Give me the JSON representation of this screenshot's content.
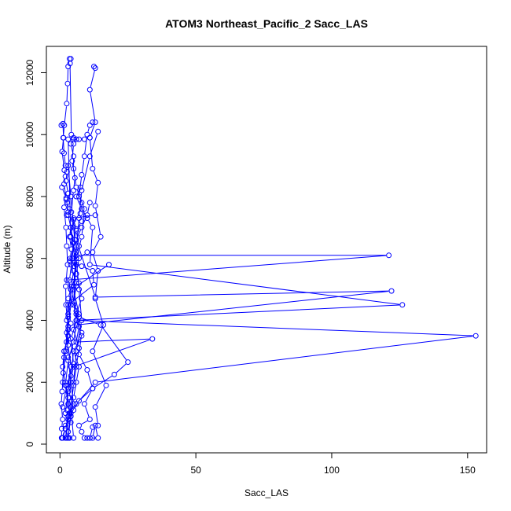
{
  "chart_data": {
    "type": "line",
    "title": "ATOM3 Northeast_Pacific_2 Sacc_LAS",
    "xlabel": "Sacc_LAS",
    "ylabel": "Altitude (m)",
    "xlim": [
      -5,
      157
    ],
    "ylim": [
      -280,
      12850
    ],
    "x_ticks": [
      0,
      50,
      100,
      150
    ],
    "y_ticks": [
      0,
      2000,
      4000,
      6000,
      8000,
      10000,
      12000
    ],
    "grid": false,
    "legend": "none",
    "color": "#0000ff",
    "marker": "open-circle",
    "series": [
      {
        "x": [
          12.5,
          13,
          11,
          13,
          11,
          12,
          14,
          13,
          15,
          12,
          14,
          13,
          16,
          12,
          17,
          13,
          14,
          12,
          11,
          14,
          13,
          12
        ],
        "y": [
          12200,
          12150,
          11450,
          10400,
          9900,
          8900,
          8450,
          7700,
          6700,
          6200,
          5600,
          4700,
          3850,
          3000,
          1900,
          1200,
          600,
          550,
          200,
          200,
          600,
          200
        ]
      },
      {
        "x": [
          3.5,
          3,
          2.8,
          2.5,
          1.6,
          1.2,
          1.5,
          2,
          2.6,
          2.2,
          3,
          2.6,
          3.5,
          3,
          4,
          3.5,
          4.2,
          3.8,
          5,
          4.2,
          3,
          2.5,
          3,
          4,
          3,
          2.6,
          2.5
        ],
        "y": [
          12450,
          12200,
          11650,
          11000,
          10300,
          9900,
          9400,
          9000,
          8800,
          8500,
          8100,
          7800,
          7600,
          7400,
          7000,
          6700,
          6300,
          6000,
          5600,
          5100,
          4700,
          4000,
          3200,
          2500,
          1800,
          1100,
          200
        ]
      },
      {
        "x": [
          4,
          3.7,
          4.2,
          5,
          6,
          5,
          4.5,
          5.5,
          5,
          4.2,
          6,
          5,
          4.5,
          3.5,
          4,
          3,
          5,
          4,
          3.5,
          4,
          3,
          3.5
        ],
        "y": [
          12450,
          12300,
          10000,
          9850,
          9850,
          9700,
          9150,
          8600,
          8200,
          7500,
          6950,
          6500,
          6000,
          5300,
          4500,
          3700,
          3000,
          2200,
          1500,
          900,
          400,
          200
        ]
      },
      {
        "x": [
          0.5,
          1.1,
          1.3,
          0.8,
          1.6,
          2,
          1.5,
          2.3,
          1.5,
          2.2,
          2.5,
          2.8,
          2.1,
          2.2,
          3,
          2.4,
          1.5,
          1.2,
          0.8,
          0.5,
          1,
          0.6,
          0.6
        ],
        "y": [
          10300,
          10350,
          9900,
          9450,
          8850,
          8650,
          8400,
          7900,
          7650,
          7000,
          6400,
          5800,
          5100,
          4500,
          3800,
          3300,
          2800,
          2300,
          1700,
          1300,
          800,
          500,
          200
        ]
      },
      {
        "x": [
          12,
          11,
          10,
          9,
          8,
          7,
          8,
          7.5,
          8,
          6,
          7,
          5,
          6,
          7,
          8,
          6,
          5,
          7,
          6,
          5,
          4,
          5
        ],
        "y": [
          10400,
          10300,
          10000,
          9300,
          8700,
          8000,
          7800,
          7450,
          7200,
          6900,
          6400,
          6000,
          5500,
          5200,
          4700,
          4200,
          3700,
          3100,
          2500,
          1900,
          1200,
          200
        ]
      },
      {
        "x": [
          11,
          9,
          7,
          5,
          3,
          4,
          6,
          121,
          2.5,
          4,
          6,
          8,
          7,
          10,
          12,
          9,
          11,
          7,
          8,
          9,
          10
        ],
        "y": [
          9900,
          9850,
          9850,
          9900,
          9850,
          6700,
          6100,
          6100,
          5300,
          5000,
          4300,
          3600,
          2900,
          2400,
          1800,
          1300,
          800,
          600,
          400,
          200,
          200
        ]
      },
      {
        "x": [
          0.7,
          2.3,
          3,
          2.5,
          5,
          5.5,
          3.8,
          8,
          12,
          12.5,
          3,
          4,
          3,
          1.5,
          1,
          2,
          3,
          3.5,
          2,
          0.7
        ],
        "y": [
          8300,
          7950,
          7500,
          7400,
          7250,
          6600,
          5900,
          5750,
          5600,
          5150,
          4500,
          3900,
          3500,
          3000,
          2500,
          2000,
          1500,
          1000,
          500,
          200
        ]
      },
      {
        "x": [
          7.5,
          6,
          8,
          10,
          12,
          11,
          126,
          6,
          8,
          5,
          7,
          6,
          5,
          4,
          3
        ],
        "y": [
          8300,
          8000,
          7600,
          7300,
          7000,
          5800,
          4500,
          4000,
          3500,
          3000,
          2500,
          2000,
          1500,
          900,
          200
        ]
      },
      {
        "x": [
          11,
          10,
          8,
          6,
          13,
          122,
          6,
          5,
          3,
          2,
          3,
          4
        ],
        "y": [
          7800,
          7400,
          7000,
          6600,
          4750,
          4950,
          3850,
          3300,
          2700,
          1900,
          1300,
          700
        ]
      },
      {
        "x": [
          4,
          5,
          5,
          6,
          9,
          8,
          6,
          5,
          6,
          153,
          13,
          6,
          3,
          2
        ],
        "y": [
          9700,
          9300,
          8900,
          8300,
          7600,
          6700,
          6000,
          4600,
          4000,
          3500,
          2000,
          1300,
          800,
          200
        ]
      },
      {
        "x": [
          13,
          5,
          4,
          6,
          5,
          7,
          4,
          5,
          2.5,
          1
        ],
        "y": [
          7400,
          7300,
          6700,
          5800,
          5000,
          4200,
          3400,
          2600,
          1900,
          1200
        ]
      },
      {
        "x": [
          18,
          6,
          5,
          7,
          15,
          25,
          20,
          12,
          7,
          5,
          2
        ],
        "y": [
          5800,
          5100,
          4600,
          4100,
          3850,
          2650,
          2250,
          1800,
          1400,
          1100,
          600
        ]
      },
      {
        "x": [
          10,
          7,
          6,
          4,
          3,
          2.5,
          3,
          4,
          5,
          3,
          2,
          1
        ],
        "y": [
          6200,
          6000,
          5500,
          5000,
          4200,
          3600,
          2800,
          2000,
          1300,
          900,
          500,
          200
        ]
      },
      {
        "x": [
          4,
          5,
          4,
          6,
          5,
          7,
          6,
          34,
          5,
          3,
          2
        ],
        "y": [
          7000,
          6500,
          5800,
          5200,
          4500,
          3800,
          3300,
          3400,
          2500,
          1700,
          1000
        ]
      },
      {
        "x": [
          14,
          11,
          8,
          7,
          6,
          5,
          3,
          2,
          1
        ],
        "y": [
          10100,
          9300,
          8200,
          7300,
          6200,
          5100,
          4100,
          3000,
          2000
        ]
      },
      {
        "x": [
          3,
          4,
          5,
          6,
          7,
          8,
          6,
          5,
          4,
          3
        ],
        "y": [
          9000,
          8000,
          7000,
          6000,
          5000,
          4000,
          3000,
          2000,
          1000,
          200
        ]
      }
    ]
  }
}
